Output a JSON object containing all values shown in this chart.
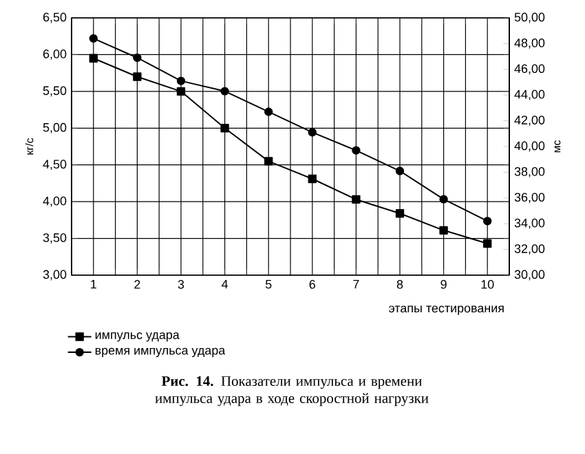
{
  "chart_data": {
    "type": "line",
    "x": [
      1,
      2,
      3,
      4,
      5,
      6,
      7,
      8,
      9,
      10
    ],
    "series": [
      {
        "name": "импульс удара",
        "color": "#000000",
        "marker": "square",
        "values": [
          5.95,
          5.7,
          5.5,
          5.0,
          4.55,
          4.31,
          4.03,
          3.84,
          3.61,
          3.43
        ]
      },
      {
        "name": "время импульса удара",
        "color": "#000000",
        "marker": "circle",
        "axis": "y2",
        "values": [
          48.4,
          46.9,
          45.1,
          44.3,
          42.7,
          41.1,
          39.7,
          38.1,
          35.9,
          34.2
        ]
      }
    ],
    "xlim": [
      0.5,
      10.5
    ],
    "xticks": [
      {
        "value": 0.5,
        "label": null
      },
      1,
      {
        "value": 1.5,
        "label": null
      },
      2,
      {
        "value": 2.5,
        "label": null
      },
      3,
      {
        "value": 3.5,
        "label": null
      },
      4,
      {
        "value": 4.5,
        "label": null
      },
      5,
      {
        "value": 5.5,
        "label": null
      },
      6,
      {
        "value": 6.5,
        "label": null
      },
      7,
      {
        "value": 7.5,
        "label": null
      },
      8,
      {
        "value": 8.5,
        "label": null
      },
      9,
      {
        "value": 9.5,
        "label": null
      },
      10,
      {
        "value": 10.5,
        "label": null
      }
    ],
    "ylim": [
      3.0,
      6.5
    ],
    "yticks": [
      {
        "value": 3.0,
        "label": "3,00"
      },
      {
        "value": 3.5,
        "label": "3,50"
      },
      {
        "value": 4.0,
        "label": "4,00"
      },
      {
        "value": 4.5,
        "label": "4,50"
      },
      {
        "value": 5.0,
        "label": "5,00"
      },
      {
        "value": 5.5,
        "label": "5,50"
      },
      {
        "value": 6.0,
        "label": "6,00"
      },
      {
        "value": 6.5,
        "label": "6,50"
      }
    ],
    "y2lim": [
      30,
      50
    ],
    "y2ticks": [
      {
        "value": 30,
        "label": "30,00"
      },
      {
        "value": 32,
        "label": "32,00"
      },
      {
        "value": 34,
        "label": "34,00"
      },
      {
        "value": 36,
        "label": "36,00"
      },
      {
        "value": 38,
        "label": "38,00"
      },
      {
        "value": 40,
        "label": "40,00"
      },
      {
        "value": 42,
        "label": "42,00"
      },
      {
        "value": 44,
        "label": "44,00"
      },
      {
        "value": 46,
        "label": "46,00"
      },
      {
        "value": 48,
        "label": "48,00"
      },
      {
        "value": 50,
        "label": "50,00"
      }
    ],
    "xlabel": "этапы тестирования",
    "ylabel": "кг/с",
    "y2label": "мс",
    "grid": true,
    "legend": "bottom",
    "annotations": [
      "**Рис. 14.** Показатели импульса и времени импульса удара в ходе скоростной нагрузки"
    ]
  }
}
